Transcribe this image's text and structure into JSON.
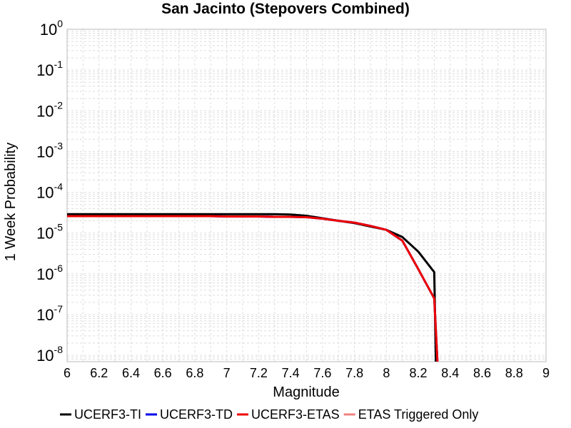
{
  "chart_data": {
    "type": "line",
    "title": "San Jacinto (Stepovers Combined)",
    "xlabel": "Magnitude",
    "ylabel": "1 Week Probability",
    "xlim": [
      6,
      9
    ],
    "ylim": [
      7e-09,
      1
    ],
    "yscale": "log",
    "grid": true,
    "legend_position": "bottom",
    "x_ticks": [
      "6",
      "6.2",
      "6.4",
      "6.6",
      "6.8",
      "7",
      "7.2",
      "7.4",
      "7.6",
      "7.8",
      "8",
      "8.2",
      "8.4",
      "8.6",
      "8.8",
      "9"
    ],
    "y_ticks": [
      {
        "base": "10",
        "exp": "0"
      },
      {
        "base": "10",
        "exp": "-1"
      },
      {
        "base": "10",
        "exp": "-2"
      },
      {
        "base": "10",
        "exp": "-3"
      },
      {
        "base": "10",
        "exp": "-4"
      },
      {
        "base": "10",
        "exp": "-5"
      },
      {
        "base": "10",
        "exp": "-6"
      },
      {
        "base": "10",
        "exp": "-7"
      },
      {
        "base": "10",
        "exp": "-8"
      }
    ],
    "series": [
      {
        "name": "UCERF3-TI",
        "color": "#000000",
        "x": [
          6.0,
          6.1,
          6.2,
          6.3,
          6.4,
          6.5,
          6.6,
          6.7,
          6.8,
          6.9,
          7.0,
          7.1,
          7.2,
          7.3,
          7.4,
          7.5,
          7.6,
          7.7,
          7.8,
          7.9,
          8.0,
          8.1,
          8.2,
          8.3,
          8.31
        ],
        "y": [
          2.9e-05,
          2.9e-05,
          2.9e-05,
          2.9e-05,
          2.9e-05,
          2.9e-05,
          2.9e-05,
          2.9e-05,
          2.9e-05,
          2.9e-05,
          2.9e-05,
          2.9e-05,
          2.9e-05,
          2.9e-05,
          2.85e-05,
          2.65e-05,
          2.3e-05,
          2e-05,
          1.75e-05,
          1.45e-05,
          1.2e-05,
          8e-06,
          3.5e-06,
          1.1e-06,
          7e-09
        ]
      },
      {
        "name": "UCERF3-TD",
        "color": "#0000ee",
        "x": [
          6.0,
          6.1,
          6.2,
          6.3,
          6.4,
          6.5,
          6.6,
          6.7,
          6.8,
          6.9,
          7.0,
          7.1,
          7.2,
          7.3,
          7.4,
          7.5,
          7.6,
          7.7,
          7.8,
          7.9,
          8.0,
          8.1,
          8.2,
          8.3,
          8.32
        ],
        "y": [
          2.6e-05,
          2.6e-05,
          2.6e-05,
          2.6e-05,
          2.6e-05,
          2.6e-05,
          2.6e-05,
          2.6e-05,
          2.6e-05,
          2.6e-05,
          2.55e-05,
          2.55e-05,
          2.55e-05,
          2.5e-05,
          2.5e-05,
          2.45e-05,
          2.25e-05,
          2e-05,
          1.8e-05,
          1.5e-05,
          1.2e-05,
          6.5e-06,
          1.3e-06,
          2.5e-07,
          7e-09
        ]
      },
      {
        "name": "UCERF3-ETAS",
        "color": "#ee0000",
        "x": [
          6.0,
          6.1,
          6.2,
          6.3,
          6.4,
          6.5,
          6.6,
          6.7,
          6.8,
          6.9,
          7.0,
          7.1,
          7.2,
          7.3,
          7.4,
          7.5,
          7.6,
          7.7,
          7.8,
          7.9,
          8.0,
          8.1,
          8.2,
          8.3,
          8.32
        ],
        "y": [
          2.6e-05,
          2.6e-05,
          2.6e-05,
          2.6e-05,
          2.6e-05,
          2.6e-05,
          2.6e-05,
          2.6e-05,
          2.6e-05,
          2.6e-05,
          2.55e-05,
          2.55e-05,
          2.55e-05,
          2.5e-05,
          2.5e-05,
          2.45e-05,
          2.25e-05,
          2e-05,
          1.8e-05,
          1.5e-05,
          1.2e-05,
          6.5e-06,
          1.3e-06,
          2.5e-07,
          7e-09
        ]
      },
      {
        "name": "ETAS Triggered Only",
        "color": "#f08080",
        "x": [],
        "y": []
      }
    ]
  }
}
